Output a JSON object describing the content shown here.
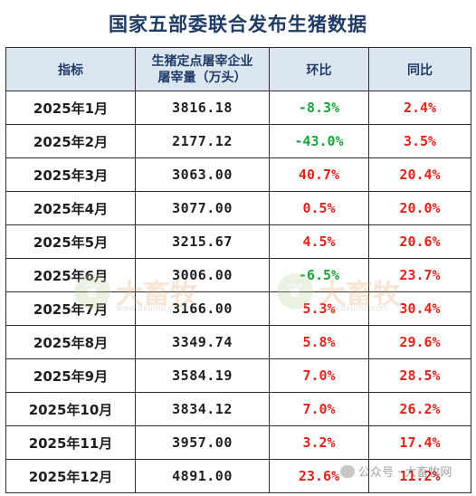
{
  "title": "国家五部委联合发布生猪数据",
  "headers": {
    "indicator": "指标",
    "stock_line1": "生猪定点屠宰企业",
    "stock_line2": "屠宰量（万头）",
    "mom": "环比",
    "yoy": "同比"
  },
  "rows": [
    {
      "month": "2025年1月",
      "value": "3816.18",
      "mom": "-8.3%",
      "yoy": "2.4%"
    },
    {
      "month": "2025年2月",
      "value": "2177.12",
      "mom": "-43.0%",
      "yoy": "3.5%"
    },
    {
      "month": "2025年3月",
      "value": "3063.00",
      "mom": "40.7%",
      "yoy": "20.4%"
    },
    {
      "month": "2025年4月",
      "value": "3077.00",
      "mom": "0.5%",
      "yoy": "20.0%"
    },
    {
      "month": "2025年5月",
      "value": "3215.67",
      "mom": "4.5%",
      "yoy": "20.6%"
    },
    {
      "month": "2025年6月",
      "value": "3006.00",
      "mom": "-6.5%",
      "yoy": "23.7%"
    },
    {
      "month": "2025年7月",
      "value": "3166.00",
      "mom": "5.3%",
      "yoy": "30.4%"
    },
    {
      "month": "2025年8月",
      "value": "3349.74",
      "mom": "5.8%",
      "yoy": "29.6%"
    },
    {
      "month": "2025年9月",
      "value": "3584.19",
      "mom": "7.0%",
      "yoy": "28.5%"
    },
    {
      "month": "2025年10月",
      "value": "3834.12",
      "mom": "7.0%",
      "yoy": "26.2%"
    },
    {
      "month": "2025年11月",
      "value": "3957.00",
      "mom": "3.2%",
      "yoy": "17.4%"
    },
    {
      "month": "2025年12月",
      "value": "4891.00",
      "mom": "23.6%",
      "yoy": "11.2%"
    }
  ],
  "colors": {
    "positive": "#e3221c",
    "negative": "#18a53a",
    "header_bg": "#dce6f1"
  },
  "watermark": {
    "brand": "大畜牧",
    "site": "www.dxumu.com",
    "icon": "leaf-logo-icon"
  },
  "footer": {
    "text": "公众号 · 大畜牧网",
    "icon": "wechat-icon"
  }
}
